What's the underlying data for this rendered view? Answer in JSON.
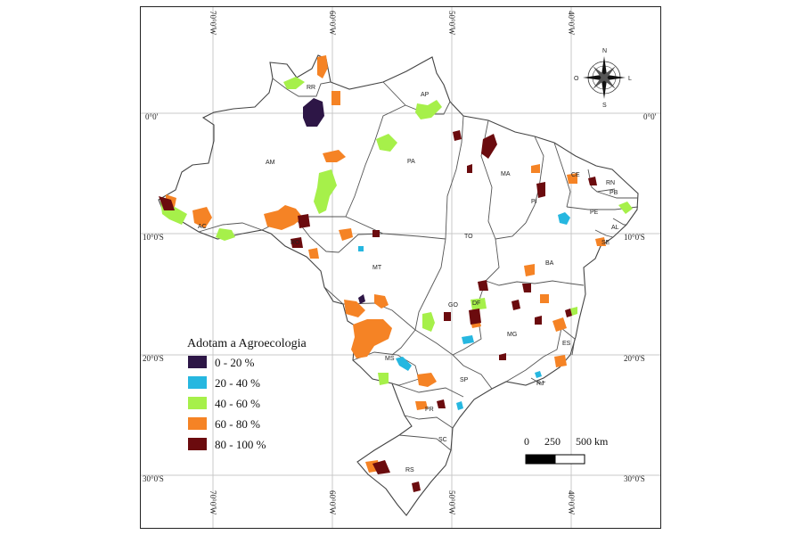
{
  "map": {
    "longitude_labels": [
      "70°0'W",
      "60°0'W",
      "50°0'W",
      "40°0'W"
    ],
    "latitude_labels": [
      "0°0'",
      "10°0'S",
      "20°0'S",
      "30°0'S"
    ],
    "states": [
      "RR",
      "AP",
      "AM",
      "PA",
      "MA",
      "CE",
      "RN",
      "PB",
      "PE",
      "AL",
      "SE",
      "PI",
      "AC",
      "RO",
      "TO",
      "BA",
      "MT",
      "GO",
      "DF",
      "MG",
      "ES",
      "MS",
      "SP",
      "RJ",
      "PR",
      "SC",
      "RS"
    ]
  },
  "legend": {
    "title": "Adotam a Agroecologia",
    "classes": [
      {
        "label": "0 - 20 %",
        "color": "#2d1646"
      },
      {
        "label": "20 - 40 %",
        "color": "#26b7e0"
      },
      {
        "label": "40 - 60 %",
        "color": "#a6f04a"
      },
      {
        "label": "60 - 80 %",
        "color": "#f58325"
      },
      {
        "label": "80 - 100 %",
        "color": "#6b0b0e"
      }
    ]
  },
  "scale_bar": {
    "ticks": [
      "0",
      "250",
      "500 km"
    ]
  },
  "compass": {
    "north": "N",
    "south": "S",
    "east": "L",
    "west": "O"
  }
}
